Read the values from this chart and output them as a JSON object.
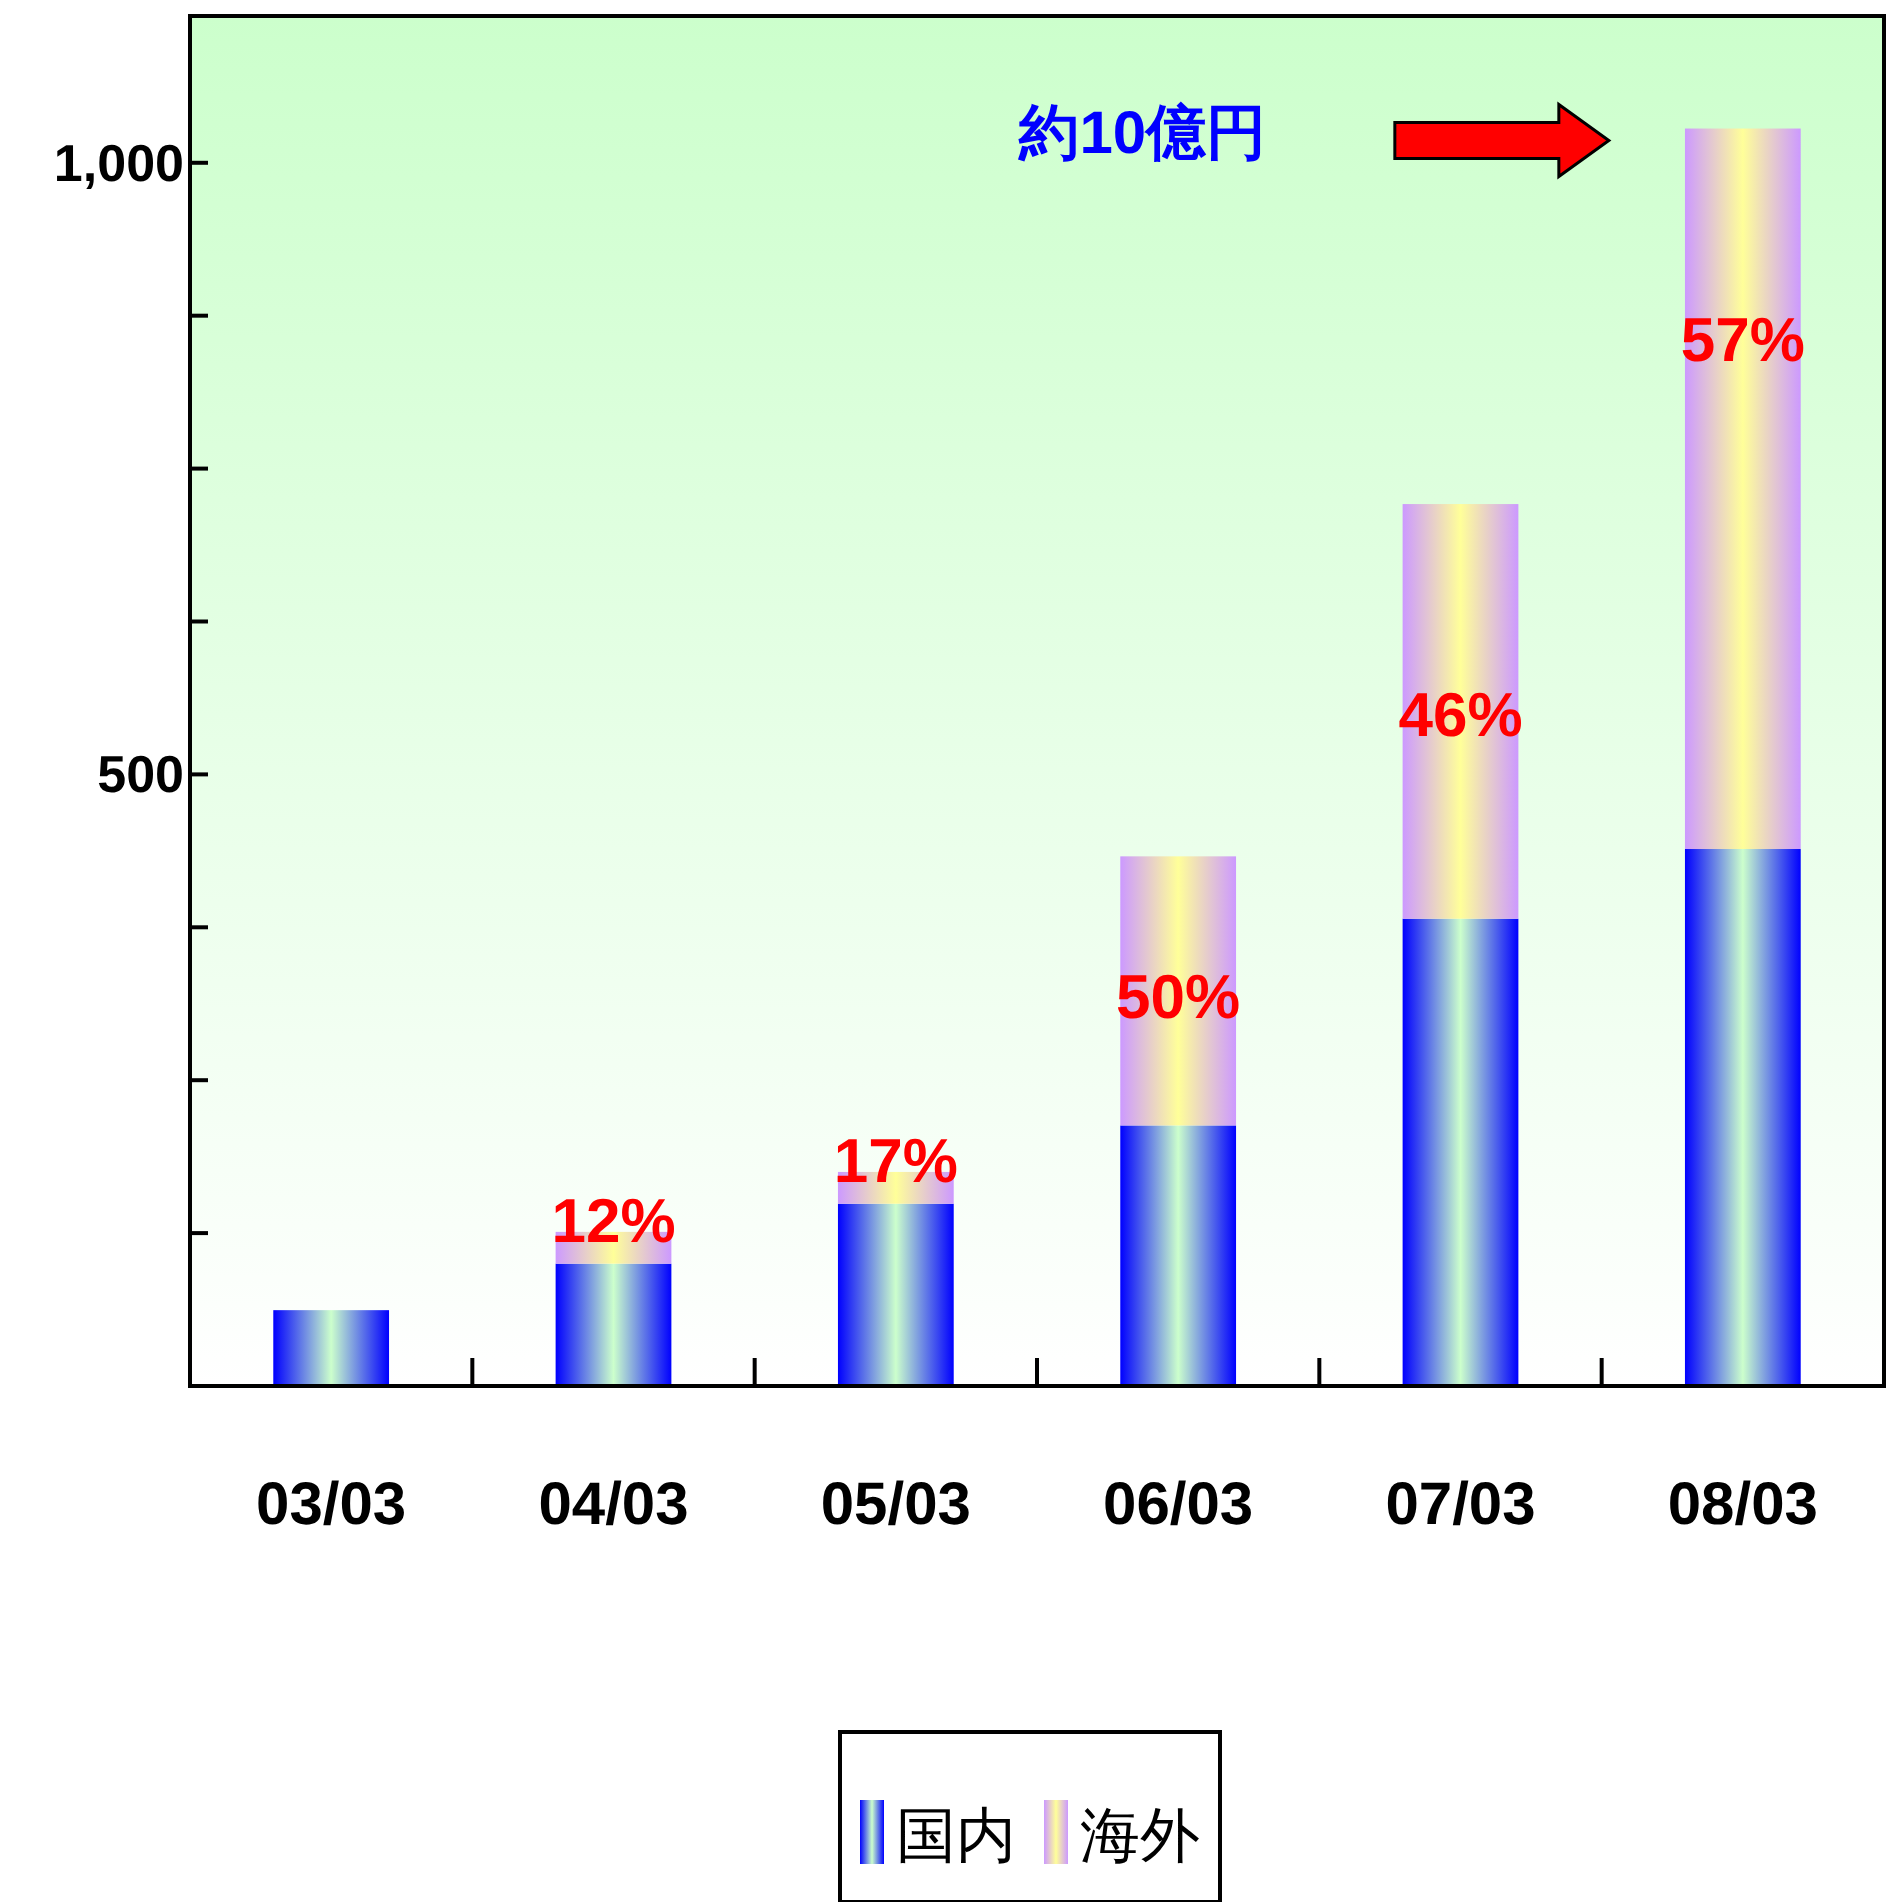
{
  "chart_data": {
    "type": "bar",
    "stacked": true,
    "categories": [
      "03/03",
      "04/03",
      "05/03",
      "06/03",
      "07/03",
      "08/03"
    ],
    "series": [
      {
        "name": "国内",
        "color": "#0000ff",
        "values": [
          62,
          100,
          149,
          213,
          382,
          439
        ]
      },
      {
        "name": "海外",
        "color": "#cc99ff",
        "values": [
          0,
          26,
          26,
          220,
          339,
          589
        ]
      }
    ],
    "ylim": [
      0,
      1120
    ],
    "yticks": [
      {
        "value": 125,
        "label": null
      },
      {
        "value": 250,
        "label": null
      },
      {
        "value": 375,
        "label": null
      },
      500,
      {
        "value": 625,
        "label": null
      },
      {
        "value": 750,
        "label": null
      },
      {
        "value": 875,
        "label": null
      },
      {
        "value": 1000,
        "label": "1,000"
      }
    ],
    "annotations": [
      "約10億円",
      {
        "text": "12%",
        "x": "04/03",
        "y": 126
      },
      {
        "text": "17%",
        "x": "05/03",
        "y": 175
      },
      {
        "text": "50%",
        "x": "06/03",
        "y": 433
      },
      {
        "text": "46%",
        "x": "07/03",
        "y": 721
      },
      {
        "text": "57%",
        "x": "08/03",
        "y": 1028
      }
    ],
    "legend": "bottom",
    "grid": false
  }
}
